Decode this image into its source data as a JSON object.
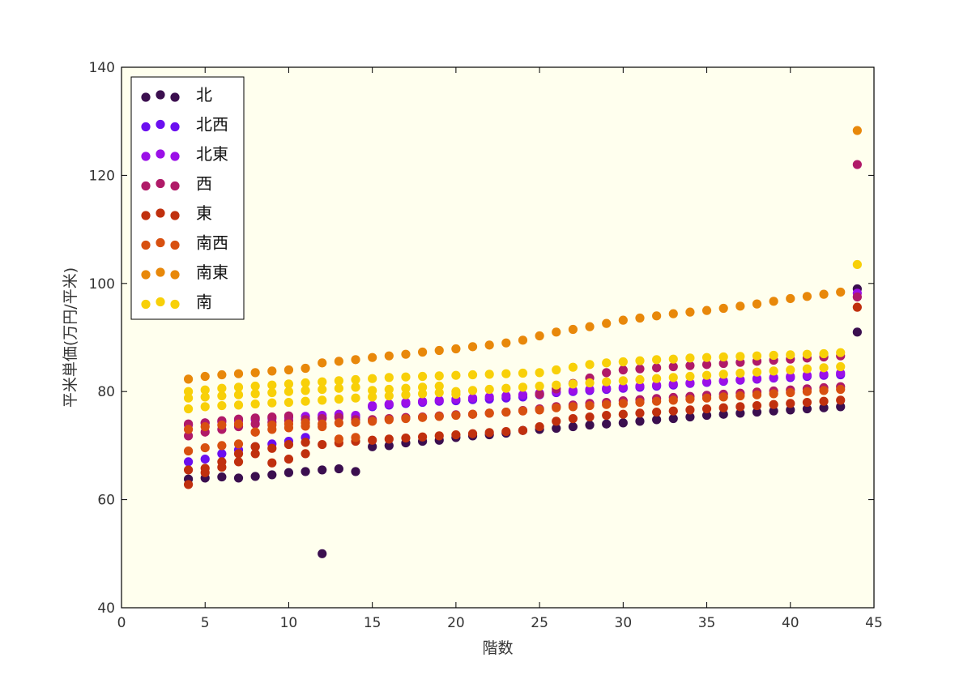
{
  "chart_data": {
    "type": "scatter",
    "title": "",
    "xlabel": "階数",
    "ylabel": "平米単価(万円/平米)",
    "xlim": [
      0,
      45
    ],
    "ylim": [
      40,
      140
    ],
    "xticks": [
      "0",
      "5",
      "10",
      "15",
      "20",
      "25",
      "30",
      "35",
      "40",
      "45"
    ],
    "yticks": [
      "40",
      "60",
      "80",
      "100",
      "120",
      "140"
    ],
    "grid": false,
    "legend_position": "top-left",
    "background": "#ffffee",
    "series": [
      {
        "name": "北",
        "color": "#3b0f4f",
        "x": [
          4,
          5,
          6,
          7,
          8,
          9,
          10,
          11,
          12,
          13,
          14,
          15,
          16,
          17,
          18,
          19,
          20,
          21,
          22,
          23,
          24,
          25,
          26,
          27,
          28,
          29,
          30,
          31,
          32,
          33,
          34,
          35,
          36,
          37,
          38,
          39,
          40,
          41,
          42,
          43,
          44,
          44,
          12
        ],
        "y": [
          63.8,
          64.0,
          64.2,
          64.0,
          64.3,
          64.6,
          65.0,
          65.2,
          65.5,
          65.7,
          65.2,
          69.8,
          70.0,
          70.5,
          70.8,
          71.0,
          71.5,
          71.8,
          72.0,
          72.3,
          72.8,
          73.0,
          73.2,
          73.5,
          73.8,
          74.0,
          74.2,
          74.5,
          74.8,
          75.0,
          75.3,
          75.6,
          75.8,
          76.0,
          76.2,
          76.4,
          76.6,
          76.8,
          77.0,
          77.2,
          99.0,
          91.0,
          50.0
        ]
      },
      {
        "name": "北西",
        "color": "#6b0ff0",
        "x": [
          4,
          5,
          6,
          7,
          8,
          9,
          10,
          11,
          12,
          13,
          14,
          15,
          16,
          17,
          18,
          19,
          20,
          21,
          22,
          23,
          24,
          25,
          26,
          27,
          28,
          29,
          30,
          31,
          32,
          33,
          34,
          35,
          36,
          37,
          38,
          39,
          40,
          41,
          42,
          43
        ],
        "y": [
          67.0,
          67.5,
          68.5,
          69.2,
          69.8,
          70.3,
          70.8,
          71.5,
          75.2,
          75.4,
          75.3,
          77.2,
          77.5,
          77.8,
          78.0,
          78.2,
          78.3,
          78.5,
          78.6,
          78.8,
          79.0,
          79.4,
          79.8,
          80.0,
          80.2,
          80.4,
          80.6,
          80.8,
          81.0,
          81.2,
          81.5,
          81.7,
          81.9,
          82.1,
          82.3,
          82.5,
          82.6,
          82.8,
          83.0,
          83.1
        ]
      },
      {
        "name": "北東",
        "color": "#9b10e8",
        "x": [
          4,
          5,
          6,
          7,
          8,
          9,
          10,
          11,
          12,
          13,
          14,
          15,
          16,
          17,
          18,
          19,
          20,
          21,
          22,
          23,
          24,
          25,
          26,
          27,
          28,
          29,
          30,
          31,
          32,
          33,
          34,
          35,
          36,
          37,
          38,
          39,
          40,
          41,
          42,
          43,
          44
        ],
        "y": [
          73.8,
          74.2,
          74.4,
          74.6,
          74.8,
          75.0,
          75.2,
          75.4,
          75.6,
          75.8,
          75.6,
          77.4,
          77.7,
          78.0,
          78.2,
          78.4,
          78.6,
          78.8,
          79.0,
          79.2,
          79.4,
          79.7,
          80.0,
          80.2,
          80.4,
          80.6,
          80.8,
          81.0,
          81.2,
          81.4,
          81.6,
          81.8,
          82.0,
          82.2,
          82.4,
          82.6,
          82.8,
          83.0,
          83.2,
          83.4,
          98.2
        ]
      },
      {
        "name": "西",
        "color": "#b01a68",
        "x": [
          4,
          5,
          6,
          7,
          8,
          9,
          10,
          11,
          12,
          13,
          14,
          15,
          16,
          17,
          18,
          19,
          20,
          21,
          22,
          23,
          24,
          25,
          26,
          27,
          28,
          29,
          30,
          31,
          32,
          33,
          34,
          35,
          36,
          37,
          38,
          39,
          40,
          41,
          42,
          43,
          44,
          4,
          5,
          6,
          7,
          8,
          9,
          10,
          25,
          26,
          27,
          28,
          29,
          30,
          31,
          32,
          33,
          34,
          35,
          36,
          37,
          38,
          39,
          40,
          41,
          42,
          43,
          44
        ],
        "y": [
          71.8,
          72.5,
          73.0,
          73.5,
          74.0,
          74.3,
          74.6,
          74.8,
          75.0,
          75.2,
          74.8,
          74.8,
          75.0,
          75.2,
          75.3,
          75.5,
          75.7,
          75.8,
          76.0,
          76.2,
          76.5,
          76.8,
          77.2,
          77.5,
          77.8,
          78.0,
          78.3,
          78.5,
          78.7,
          78.9,
          79.1,
          79.3,
          79.5,
          79.7,
          79.9,
          80.1,
          80.3,
          80.5,
          80.7,
          80.9,
          122.0,
          74.0,
          74.2,
          74.6,
          74.9,
          75.1,
          75.3,
          75.5,
          79.5,
          80.5,
          81.5,
          82.5,
          83.5,
          84.0,
          84.2,
          84.4,
          84.6,
          84.8,
          85.0,
          85.2,
          85.4,
          85.6,
          85.8,
          86.0,
          86.2,
          86.4,
          86.6,
          97.5
        ]
      },
      {
        "name": "東",
        "color": "#c0300e",
        "x": [
          4,
          5,
          6,
          7,
          8,
          9,
          10,
          11,
          12,
          13,
          14,
          15,
          16,
          17,
          18,
          19,
          20,
          21,
          22,
          23,
          24,
          25,
          26,
          27,
          28,
          29,
          30,
          31,
          32,
          33,
          34,
          35,
          36,
          37,
          38,
          39,
          40,
          41,
          42,
          43,
          44,
          4,
          5,
          6,
          7,
          8,
          9,
          10,
          11
        ],
        "y": [
          62.8,
          65.0,
          66.0,
          67.0,
          68.5,
          69.5,
          70.2,
          70.6,
          70.2,
          70.5,
          70.8,
          71.0,
          71.2,
          71.4,
          71.6,
          71.8,
          72.0,
          72.2,
          72.4,
          72.6,
          72.8,
          73.5,
          74.5,
          75.0,
          75.3,
          75.6,
          75.8,
          76.0,
          76.2,
          76.4,
          76.6,
          76.8,
          77.0,
          77.2,
          77.4,
          77.6,
          77.8,
          78.0,
          78.2,
          78.4,
          95.6,
          65.5,
          65.8,
          67.0,
          68.5,
          69.8,
          66.8,
          67.5,
          68.5
        ]
      },
      {
        "name": "南西",
        "color": "#d85010",
        "x": [
          4,
          5,
          6,
          7,
          8,
          9,
          10,
          11,
          12,
          13,
          14,
          15,
          16,
          17,
          18,
          19,
          20,
          21,
          22,
          23,
          24,
          25,
          26,
          27,
          28,
          29,
          30,
          31,
          32,
          33,
          34,
          35,
          36,
          37,
          38,
          39,
          40,
          41,
          42,
          43,
          4,
          5,
          6,
          7,
          8,
          9,
          10,
          11,
          12,
          13,
          14
        ],
        "y": [
          69.0,
          69.6,
          70.0,
          70.3,
          72.5,
          73.0,
          73.3,
          73.6,
          74.0,
          74.2,
          74.3,
          74.5,
          74.8,
          75.0,
          75.2,
          75.4,
          75.6,
          75.8,
          76.0,
          76.2,
          76.4,
          76.6,
          77.0,
          77.2,
          77.4,
          77.6,
          77.8,
          78.0,
          78.2,
          78.4,
          78.6,
          78.8,
          79.0,
          79.2,
          79.4,
          79.6,
          79.8,
          80.0,
          80.2,
          80.4,
          73.0,
          73.5,
          73.8,
          74.0,
          72.5,
          73.8,
          74.0,
          74.2,
          73.5,
          71.2,
          71.5
        ]
      },
      {
        "name": "南東",
        "color": "#e8880a",
        "x": [
          4,
          5,
          6,
          7,
          8,
          9,
          10,
          11,
          12,
          13,
          14,
          15,
          16,
          17,
          18,
          19,
          20,
          21,
          22,
          23,
          24,
          25,
          26,
          27,
          28,
          29,
          30,
          31,
          32,
          33,
          34,
          35,
          36,
          37,
          38,
          39,
          40,
          41,
          42,
          43,
          44
        ],
        "y": [
          82.3,
          82.8,
          83.1,
          83.3,
          83.5,
          83.8,
          84.0,
          84.3,
          85.3,
          85.6,
          85.9,
          86.3,
          86.6,
          86.9,
          87.3,
          87.6,
          87.9,
          88.3,
          88.6,
          89.0,
          89.5,
          90.3,
          91.0,
          91.5,
          92.0,
          92.6,
          93.2,
          93.6,
          94.0,
          94.4,
          94.7,
          95.0,
          95.4,
          95.8,
          96.2,
          96.7,
          97.2,
          97.6,
          98.0,
          98.4,
          128.3
        ]
      },
      {
        "name": "南",
        "color": "#f8d008",
        "x": [
          4,
          5,
          6,
          7,
          8,
          9,
          10,
          11,
          12,
          13,
          14,
          15,
          16,
          17,
          18,
          19,
          20,
          21,
          22,
          23,
          24,
          25,
          26,
          27,
          28,
          29,
          30,
          31,
          32,
          33,
          34,
          35,
          36,
          37,
          38,
          39,
          40,
          41,
          42,
          43,
          44,
          4,
          5,
          6,
          7,
          8,
          9,
          10,
          11,
          12,
          13,
          14,
          15,
          16,
          17,
          18,
          19,
          20,
          21,
          22,
          23,
          24,
          25,
          26,
          27,
          28,
          29,
          30,
          31,
          32,
          33,
          34,
          35,
          36,
          37,
          38,
          39,
          40,
          41,
          42,
          43,
          4,
          5,
          6,
          7,
          8,
          9,
          10,
          11,
          12,
          13,
          14,
          15,
          16,
          17,
          18,
          19,
          20
        ],
        "y": [
          76.8,
          77.2,
          77.4,
          77.5,
          77.7,
          77.9,
          78.0,
          78.2,
          78.4,
          78.6,
          78.8,
          79.0,
          79.2,
          79.4,
          79.6,
          79.8,
          80.0,
          80.2,
          80.4,
          80.6,
          80.8,
          81.0,
          81.2,
          81.4,
          81.6,
          81.8,
          82.0,
          82.2,
          82.4,
          82.6,
          82.8,
          83.0,
          83.2,
          83.4,
          83.6,
          83.8,
          84.0,
          84.2,
          84.4,
          84.6,
          103.5,
          80.0,
          80.3,
          80.6,
          80.8,
          81.0,
          81.2,
          81.4,
          81.6,
          81.8,
          82.0,
          82.2,
          82.4,
          82.6,
          82.7,
          82.8,
          82.9,
          83.0,
          83.1,
          83.2,
          83.3,
          83.4,
          83.5,
          84.0,
          84.5,
          85.0,
          85.3,
          85.5,
          85.7,
          85.9,
          86.0,
          86.2,
          86.3,
          86.4,
          86.5,
          86.6,
          86.7,
          86.8,
          86.9,
          87.0,
          87.2,
          78.8,
          79.0,
          79.2,
          79.4,
          79.6,
          79.8,
          80.0,
          80.2,
          80.4,
          80.6,
          80.8,
          80.2,
          80.4,
          80.6,
          80.8,
          81.0,
          79.5
        ]
      }
    ]
  }
}
